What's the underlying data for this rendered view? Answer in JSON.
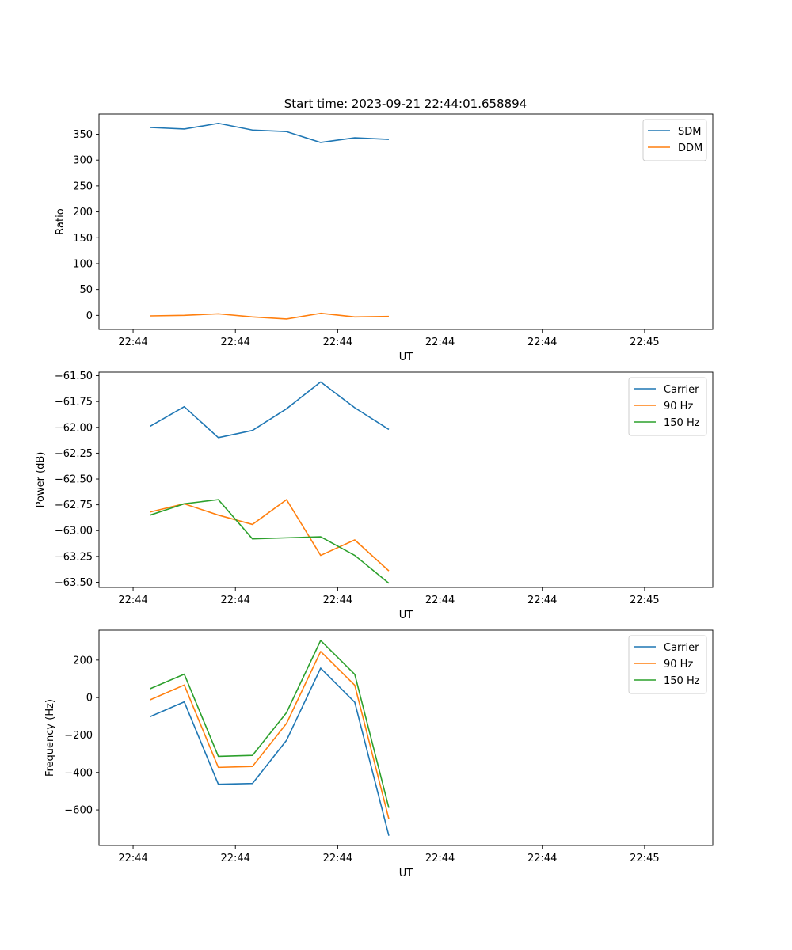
{
  "figure": {
    "title": "Start time: 2023-09-21 22:44:01.658894"
  },
  "chart_data": [
    {
      "type": "line",
      "title": "Start time: 2023-09-21 22:44:01.658894",
      "xlabel": "UT",
      "ylabel": "Ratio",
      "xlim": [
        -0.5,
        8.5
      ],
      "ylim": [
        -27,
        389
      ],
      "x_ticks": [
        0,
        1.5,
        3,
        4.5,
        6,
        7.5
      ],
      "x_tick_labels": [
        "22:44",
        "22:44",
        "22:44",
        "22:44",
        "22:44",
        "22:45"
      ],
      "y_ticks": [
        0,
        50,
        100,
        150,
        200,
        250,
        300,
        350
      ],
      "y_tick_labels": [
        "0",
        "50",
        "100",
        "150",
        "200",
        "250",
        "300",
        "350"
      ],
      "legend_position": "top-right",
      "x": [
        0.25,
        0.75,
        1.25,
        1.75,
        2.25,
        2.75,
        3.25,
        3.75
      ],
      "series": [
        {
          "name": "SDM",
          "color": "#1f77b4",
          "values": [
            363,
            360,
            371,
            358,
            355,
            334,
            343,
            340
          ]
        },
        {
          "name": "DDM",
          "color": "#ff7f0e",
          "values": [
            -1,
            0,
            3,
            -3,
            -7,
            4,
            -3,
            -2
          ]
        }
      ]
    },
    {
      "type": "line",
      "xlabel": "UT",
      "ylabel": "Power (dB)",
      "xlim": [
        -0.5,
        8.5
      ],
      "ylim": [
        -63.55,
        -61.465
      ],
      "x_ticks": [
        0,
        1.5,
        3,
        4.5,
        6,
        7.5
      ],
      "x_tick_labels": [
        "22:44",
        "22:44",
        "22:44",
        "22:44",
        "22:44",
        "22:45"
      ],
      "y_ticks": [
        -63.5,
        -63.25,
        -63.0,
        -62.75,
        -62.5,
        -62.25,
        -62.0,
        -61.75,
        -61.5
      ],
      "y_tick_labels": [
        "−63.50",
        "−63.25",
        "−63.00",
        "−62.75",
        "−62.50",
        "−62.25",
        "−62.00",
        "−61.75",
        "−61.50"
      ],
      "legend_position": "top-right",
      "x": [
        0.25,
        0.75,
        1.25,
        1.75,
        2.25,
        2.75,
        3.25,
        3.75
      ],
      "series": [
        {
          "name": "Carrier",
          "color": "#1f77b4",
          "values": [
            -61.99,
            -61.8,
            -62.1,
            -62.03,
            -61.82,
            -61.56,
            -61.81,
            -62.02
          ]
        },
        {
          "name": "90 Hz",
          "color": "#ff7f0e",
          "values": [
            -62.82,
            -62.74,
            -62.85,
            -62.94,
            -62.7,
            -63.24,
            -63.09,
            -63.39
          ]
        },
        {
          "name": "150 Hz",
          "color": "#2ca02c",
          "values": [
            -62.85,
            -62.74,
            -62.7,
            -63.08,
            -63.07,
            -63.06,
            -63.24,
            -63.51
          ]
        }
      ]
    },
    {
      "type": "line",
      "xlabel": "UT",
      "ylabel": "Frequency (Hz)",
      "xlim": [
        -0.5,
        8.5
      ],
      "ylim": [
        -790,
        360
      ],
      "x_ticks": [
        0,
        1.5,
        3,
        4.5,
        6,
        7.5
      ],
      "x_tick_labels": [
        "22:44",
        "22:44",
        "22:44",
        "22:44",
        "22:44",
        "22:45"
      ],
      "y_ticks": [
        -600,
        -400,
        -200,
        0,
        200
      ],
      "y_tick_labels": [
        "−600",
        "−400",
        "−200",
        "0",
        "200"
      ],
      "legend_position": "top-right",
      "x": [
        0.25,
        0.75,
        1.25,
        1.75,
        2.25,
        2.75,
        3.25,
        3.75
      ],
      "series": [
        {
          "name": "Carrier",
          "color": "#1f77b4",
          "values": [
            -102,
            -23,
            -463,
            -459,
            -228,
            157,
            -25,
            -738
          ]
        },
        {
          "name": "90 Hz",
          "color": "#ff7f0e",
          "values": [
            -12,
            67,
            -373,
            -368,
            -138,
            246,
            66,
            -648
          ]
        },
        {
          "name": "150 Hz",
          "color": "#2ca02c",
          "values": [
            47,
            125,
            -314,
            -309,
            -80,
            305,
            124,
            -589
          ]
        }
      ]
    }
  ]
}
